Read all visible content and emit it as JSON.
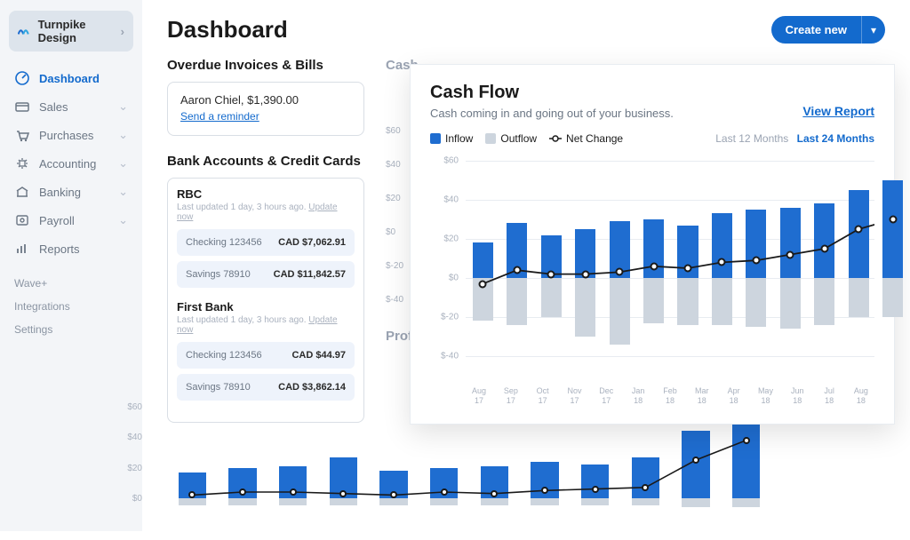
{
  "brand": "Turnpike Design",
  "nav": [
    {
      "key": "dashboard",
      "label": "Dashboard",
      "active": true,
      "chev": false
    },
    {
      "key": "sales",
      "label": "Sales",
      "active": false,
      "chev": true
    },
    {
      "key": "purchases",
      "label": "Purchases",
      "active": false,
      "chev": true
    },
    {
      "key": "accounting",
      "label": "Accounting",
      "active": false,
      "chev": true
    },
    {
      "key": "banking",
      "label": "Banking",
      "active": false,
      "chev": true
    },
    {
      "key": "payroll",
      "label": "Payroll",
      "active": false,
      "chev": true
    },
    {
      "key": "reports",
      "label": "Reports",
      "active": false,
      "chev": false
    }
  ],
  "nav_sub": [
    "Wave+",
    "Integrations",
    "Settings"
  ],
  "page_title": "Dashboard",
  "create_button": "Create new",
  "overdue": {
    "title": "Overdue Invoices & Bills",
    "line": "Aaron Chiel, $1,390.00",
    "action": "Send a reminder"
  },
  "bank_section_title": "Bank Accounts & Credit Cards",
  "banks": [
    {
      "name": "RBC",
      "meta": "Last updated 1 day, 3 hours ago.",
      "update": "Update now",
      "accounts": [
        {
          "name": "Checking 123456",
          "balance": "CAD $7,062.91"
        },
        {
          "name": "Savings 78910",
          "balance": "CAD $11,842.57"
        }
      ]
    },
    {
      "name": "First Bank",
      "meta": "Last updated 1 day, 3 hours ago.",
      "update": "Update now",
      "accounts": [
        {
          "name": "Checking 123456",
          "balance": "CAD $44.97"
        },
        {
          "name": "Savings 78910",
          "balance": "CAD $3,862.14"
        }
      ]
    }
  ],
  "mid_titles": {
    "cash": "Cash",
    "profit": "Profit"
  },
  "mid_axis_ticks": [
    "$60",
    "$40",
    "$20",
    "$0",
    "$-20",
    "$-40"
  ],
  "panel": {
    "title": "Cash Flow",
    "subtitle": "Cash coming in and going out of your business.",
    "view_report": "View Report",
    "legend": {
      "inflow": "Inflow",
      "outflow": "Outflow",
      "net": "Net Change"
    },
    "range_a": "Last 12 Months",
    "range_b": "Last 24 Months",
    "colors": {
      "inflow": "#1f6dd0",
      "outflow": "#cdd5de",
      "net_line": "#1a1a1a",
      "dot_fill": "#ffffff",
      "grid": "#e8ecf1",
      "axis_text": "#aab2bf",
      "accent": "#136acd",
      "background": "#ffffff"
    },
    "chart": {
      "type": "bar+line",
      "ylim": [
        -40,
        60
      ],
      "ytick_step": 20,
      "yticks": [
        "$60",
        "$40",
        "$20",
        "$0",
        "$-20",
        "$-40"
      ],
      "months": [
        "Aug 17",
        "Sep 17",
        "Oct 17",
        "Nov 17",
        "Dec 17",
        "Jan 18",
        "Feb 18",
        "Mar 18",
        "Apr 18",
        "May 18",
        "Jun 18",
        "Jul 18",
        "Aug 18"
      ],
      "inflow": [
        18,
        28,
        22,
        25,
        29,
        30,
        27,
        33,
        35,
        36,
        38,
        45,
        50
      ],
      "outflow": [
        -22,
        -24,
        -20,
        -30,
        -34,
        -23,
        -24,
        -24,
        -25,
        -26,
        -24,
        -20,
        -20
      ],
      "net": [
        -3,
        4,
        2,
        2,
        3,
        6,
        5,
        8,
        9,
        12,
        15,
        25,
        30
      ],
      "bar_width_ratio": 0.6
    }
  },
  "bottom_chart": {
    "type": "bar+line",
    "ylim": [
      -10,
      60
    ],
    "yticks": [
      "$60",
      "$40",
      "$20",
      "$0"
    ],
    "inflow": [
      17,
      20,
      21,
      27,
      18,
      20,
      21,
      24,
      22,
      27,
      44,
      55
    ],
    "outflow": [
      -5,
      -5,
      -5,
      -5,
      -5,
      -5,
      -5,
      -5,
      -5,
      -5,
      -6,
      -6
    ],
    "net": [
      2,
      4,
      4,
      3,
      2,
      4,
      3,
      5,
      6,
      7,
      25,
      38
    ],
    "bar_color": "#1f6dd0",
    "out_color": "#cdd5de",
    "bar_width_ratio": 0.55
  }
}
